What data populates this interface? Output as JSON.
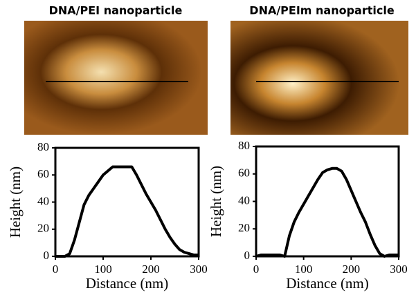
{
  "chart_data": [
    {
      "type": "line",
      "title": "DNA/PEI nanoparticle",
      "xlabel": "Distance (nm)",
      "ylabel": "Height (nm)",
      "x": [
        0,
        10,
        20,
        30,
        40,
        50,
        60,
        70,
        80,
        90,
        100,
        110,
        120,
        130,
        140,
        150,
        160,
        170,
        180,
        190,
        200,
        210,
        220,
        230,
        240,
        250,
        260,
        270,
        280,
        290,
        300
      ],
      "series": [
        {
          "name": null,
          "color": "#000000",
          "values": [
            0,
            0,
            0,
            2,
            12,
            25,
            38,
            45,
            50,
            55,
            60,
            63,
            66,
            66,
            66,
            66,
            66,
            60,
            53,
            46,
            40,
            34,
            27,
            20,
            14,
            9,
            5,
            3,
            2,
            1,
            1
          ]
        }
      ],
      "xlim": [
        0,
        300
      ],
      "ylim": [
        0,
        80
      ],
      "xticks": [
        0,
        100,
        200,
        300
      ],
      "yticks": [
        0,
        20,
        40,
        60,
        80
      ]
    },
    {
      "type": "line",
      "title": "DNA/PEIm nanoparticle",
      "xlabel": "Distance (nm)",
      "ylabel": "Height (nm)",
      "x": [
        0,
        10,
        20,
        30,
        40,
        50,
        60,
        70,
        80,
        90,
        100,
        110,
        120,
        130,
        140,
        150,
        160,
        170,
        180,
        190,
        200,
        210,
        220,
        230,
        240,
        250,
        260,
        270,
        280,
        290,
        300
      ],
      "series": [
        {
          "name": null,
          "color": "#000000",
          "values": [
            0,
            1,
            1,
            1,
            1,
            1,
            0,
            15,
            25,
            32,
            38,
            44,
            50,
            56,
            61,
            63,
            64,
            64,
            62,
            56,
            48,
            40,
            32,
            25,
            16,
            8,
            2,
            0,
            1,
            1,
            1
          ]
        }
      ],
      "xlim": [
        0,
        300
      ],
      "ylim": [
        0,
        80
      ],
      "xticks": [
        0,
        100,
        200,
        300
      ],
      "yticks": [
        0,
        20,
        40,
        60,
        80
      ]
    }
  ]
}
